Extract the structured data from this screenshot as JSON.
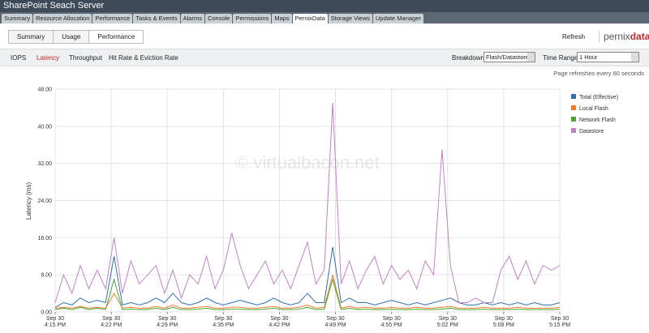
{
  "header": {
    "title": "SharePoint Seach Server"
  },
  "tabs": [
    "Summary",
    "Resource Allocation",
    "Performance",
    "Tasks & Events",
    "Alarms",
    "Console",
    "Permissions",
    "Maps",
    "PernixData",
    "Storage Views",
    "Update Manager"
  ],
  "subtabs": [
    "Summary",
    "Usage",
    "Performance"
  ],
  "refresh": "Refresh",
  "logo": [
    "pernix",
    "data"
  ],
  "metrics": [
    "IOPS",
    "Latency",
    "Throughput",
    "Hit Rate & Eviction Rate"
  ],
  "breakdown": {
    "label": "Breakdown:",
    "value": "Flash/Datastore"
  },
  "time_range": {
    "label": "Time Range:",
    "value": "1 Hour"
  },
  "refresh_note": "Page refreshes every 60 seconds",
  "chart_data": {
    "type": "line",
    "y_label": "Latency (ms)",
    "watermark": "© virtualbacon.net",
    "x": [
      0,
      1,
      2,
      3,
      4,
      5,
      6,
      7,
      8,
      9,
      10,
      11,
      12,
      13,
      14,
      15,
      16,
      17,
      18,
      19,
      20,
      21,
      22,
      23,
      24,
      25,
      26,
      27,
      28,
      29,
      30,
      31,
      32,
      33,
      34,
      35,
      36,
      37,
      38,
      39,
      40,
      41,
      42,
      43,
      44,
      45,
      46,
      47,
      48,
      49,
      50,
      51,
      52,
      53,
      54,
      55,
      56,
      57,
      58,
      59,
      60
    ],
    "xlim": [
      0,
      60
    ],
    "xticks": [
      {
        "value": 0,
        "label": "Sep 30\n4:15 PM"
      },
      {
        "value": 6.67,
        "label": "Sep 30\n4:22 PM"
      },
      {
        "value": 13.33,
        "label": "Sep 30\n4:29 PM"
      },
      {
        "value": 20,
        "label": "Sep 30\n4:35 PM"
      },
      {
        "value": 26.67,
        "label": "Sep 30\n4:42 PM"
      },
      {
        "value": 33.33,
        "label": "Sep 30\n4:49 PM"
      },
      {
        "value": 40,
        "label": "Sep 30\n4:55 PM"
      },
      {
        "value": 46.67,
        "label": "Sep 30\n5:02 PM"
      },
      {
        "value": 53.33,
        "label": "Sep 30\n5:09 PM"
      },
      {
        "value": 60,
        "label": "Sep 30\n5:15 PM"
      }
    ],
    "ylim": [
      0,
      48
    ],
    "yticks": [
      {
        "value": 0,
        "label": "0.00"
      },
      {
        "value": 8,
        "label": "8.00"
      },
      {
        "value": 16,
        "label": "16.00"
      },
      {
        "value": 24,
        "label": "24.00"
      },
      {
        "value": 32,
        "label": "32.00"
      },
      {
        "value": 40,
        "label": "40.00"
      },
      {
        "value": 48,
        "label": "48.00"
      }
    ],
    "grid": true,
    "series": [
      {
        "name": "Total (Effective)",
        "color": "#2e6fb5",
        "values": [
          1,
          2,
          1.5,
          3,
          2,
          2.5,
          2,
          12,
          1.5,
          2,
          1.5,
          2,
          3,
          2,
          4,
          2,
          1.5,
          2,
          3,
          2,
          1.5,
          2,
          2.5,
          2,
          1.5,
          2,
          3,
          2,
          1.5,
          2,
          4,
          2,
          2,
          14,
          2,
          3,
          2,
          2,
          1.5,
          2,
          2.5,
          2,
          1.5,
          2,
          1.5,
          2,
          2.5,
          3,
          2,
          1.5,
          1.5,
          2,
          1.5,
          2,
          1.5,
          2,
          1.5,
          2,
          1.5,
          1.5,
          2
        ]
      },
      {
        "name": "Local Flash",
        "color": "#f07a28",
        "values": [
          0.8,
          1,
          0.8,
          1.2,
          0.8,
          1,
          0.8,
          4,
          0.8,
          1,
          0.8,
          0.8,
          1.2,
          0.8,
          1.5,
          0.8,
          0.8,
          1,
          1.2,
          0.8,
          0.8,
          1,
          1,
          0.8,
          0.8,
          1,
          1.2,
          0.8,
          0.8,
          1,
          1.5,
          0.8,
          1,
          8,
          0.8,
          1.2,
          0.8,
          1,
          0.8,
          0.8,
          1,
          0.8,
          0.8,
          1,
          0.8,
          0.8,
          1,
          1.2,
          0.8,
          0.8,
          0.8,
          1,
          0.8,
          0.8,
          0.8,
          1,
          0.8,
          0.8,
          0.8,
          0.8,
          1
        ]
      },
      {
        "name": "Network Flash",
        "color": "#4aa832",
        "values": [
          0.5,
          0.8,
          0.5,
          1,
          0.5,
          0.8,
          0.5,
          7,
          0.5,
          0.6,
          0.5,
          0.5,
          0.8,
          0.5,
          1,
          0.5,
          0.5,
          0.6,
          0.8,
          0.5,
          0.5,
          0.6,
          0.6,
          0.5,
          0.5,
          0.6,
          0.8,
          0.5,
          0.5,
          0.6,
          1,
          0.5,
          0.6,
          7,
          0.5,
          0.8,
          0.5,
          0.6,
          0.5,
          0.5,
          0.6,
          0.5,
          0.5,
          0.6,
          0.5,
          0.5,
          0.6,
          0.8,
          0.5,
          0.5,
          0.5,
          0.6,
          0.5,
          0.5,
          0.5,
          0.6,
          0.5,
          0.5,
          0.5,
          0.5,
          0.6
        ]
      },
      {
        "name": "Datastore",
        "color": "#c27fc8",
        "values": [
          2,
          8,
          4,
          10,
          5,
          9,
          5,
          16,
          4,
          11,
          6,
          8,
          10,
          4,
          9,
          3,
          8,
          6,
          12,
          5,
          9,
          17,
          10,
          5,
          8,
          11,
          6,
          9,
          5,
          10,
          15,
          6,
          9,
          45,
          6,
          11,
          5,
          9,
          12,
          6,
          10,
          7,
          9,
          5,
          11,
          8,
          35,
          10,
          2,
          2,
          3,
          2,
          2,
          9,
          12,
          7,
          11,
          6,
          10,
          9,
          10
        ]
      }
    ]
  }
}
